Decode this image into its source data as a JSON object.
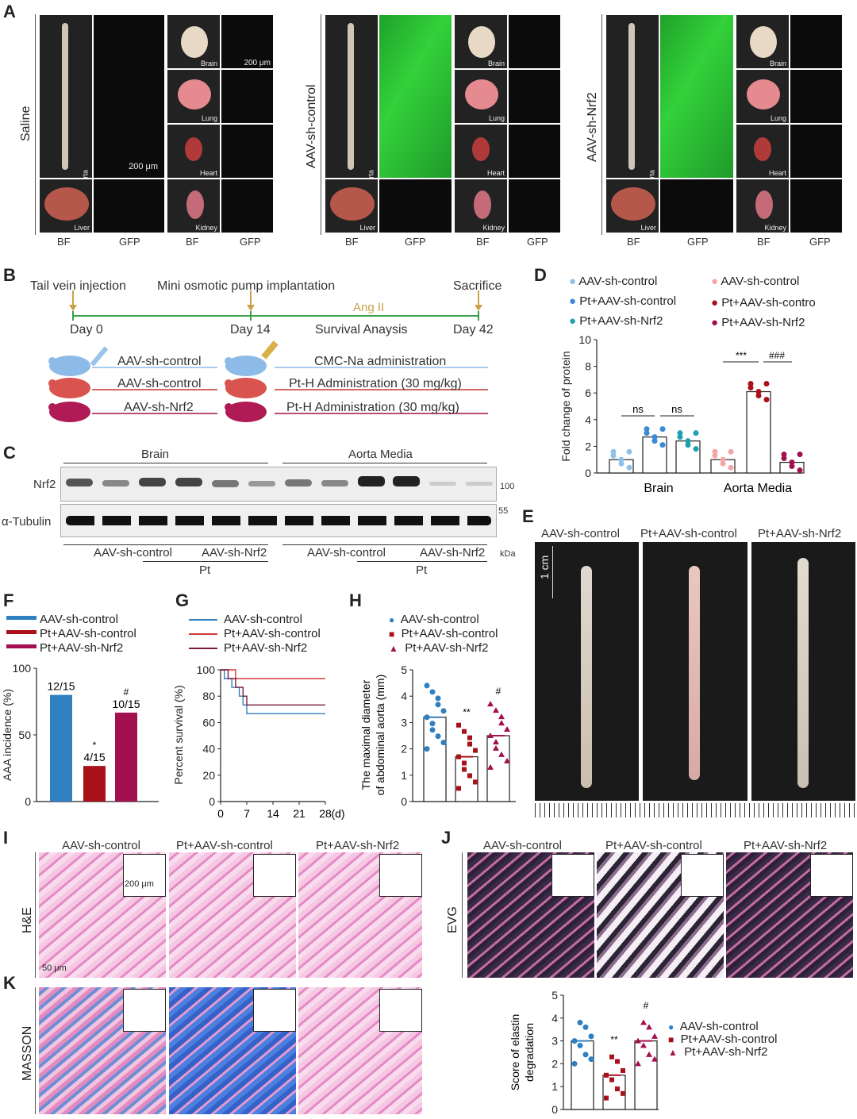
{
  "panels": {
    "A": "A",
    "B": "B",
    "C": "C",
    "D": "D",
    "E": "E",
    "F": "F",
    "G": "G",
    "H": "H",
    "I": "I",
    "J": "J",
    "K": "K"
  },
  "panel_a": {
    "groups": [
      "Saline",
      "AAV-sh-control",
      "AAV-sh-Nrf2"
    ],
    "organs": [
      "Aorta",
      "Brain",
      "Lung",
      "Heart",
      "Liver",
      "Kidney"
    ],
    "bottom": [
      "BF",
      "GFP",
      "BF",
      "GFP"
    ],
    "scale": "200 μm"
  },
  "panel_b": {
    "top": [
      "Tail vein injection",
      "Mini osmotic pump implantation",
      "Sacrifice"
    ],
    "days": [
      "Day 0",
      "Day 14",
      "Day 42"
    ],
    "angii": "Ang II",
    "survival": "Survival Anaysis",
    "rows": [
      {
        "left": "AAV-sh-control",
        "right": "CMC-Na administration"
      },
      {
        "left": "AAV-sh-control",
        "right": "Pt-H Administration (30 mg/kg)"
      },
      {
        "left": "AAV-sh-Nrf2",
        "right": "Pt-H Administration (30 mg/kg)"
      }
    ]
  },
  "panel_c": {
    "brain": "Brain",
    "aorta": "Aorta Media",
    "nrf2": "Nrf2",
    "tubulin": "α-Tubulin",
    "kda100": "100",
    "kda55": "55",
    "kda": "kDa",
    "groups": [
      "AAV-sh-control",
      "AAV-sh-Nrf2",
      "AAV-sh-control",
      "AAV-sh-Nrf2"
    ],
    "pt": "Pt"
  },
  "panel_e": {
    "groups": [
      "AAV-sh-control",
      "Pt+AAV-sh-control",
      "Pt+AAV-sh-Nrf2"
    ],
    "scale": "1 cm"
  },
  "panel_i": {
    "groups": [
      "AAV-sh-control",
      "Pt+AAV-sh-control",
      "Pt+AAV-sh-Nrf2"
    ],
    "stain": "H&E",
    "scale1": "200 μm",
    "scale2": "50 μm"
  },
  "panel_j": {
    "groups": [
      "AAV-sh-control",
      "Pt+AAV-sh-control",
      "Pt+AAV-sh-Nrf2"
    ],
    "stain": "EVG"
  },
  "panel_k": {
    "stain": "MASSON"
  },
  "colors": {
    "blue": "#2f7fc1",
    "red": "#a8101a",
    "magenta": "#a3104f",
    "green": "#3aa04a"
  },
  "chart_data": [
    {
      "id": "D",
      "type": "bar",
      "ylabel": "Fold change of protein",
      "ylim": [
        0,
        10
      ],
      "yticks": [
        0,
        2,
        4,
        6,
        8,
        10
      ],
      "groups": [
        "Brain",
        "Aorta Media"
      ],
      "legend": [
        "AAV-sh-control",
        "Pt+AAV-sh-control",
        "Pt+AAV-sh-Nrf2",
        "AAV-sh-control",
        "Pt+AAV-sh-contro",
        "Pt+AAV-sh-Nrf2"
      ],
      "series": [
        {
          "name": "AAV-sh-control",
          "group": "Brain",
          "value": 1.0,
          "color": "#8ec1ea"
        },
        {
          "name": "Pt+AAV-sh-control",
          "group": "Brain",
          "value": 2.7,
          "color": "#3b8ad8"
        },
        {
          "name": "Pt+AAV-sh-Nrf2",
          "group": "Brain",
          "value": 2.4,
          "color": "#1f9fb0"
        },
        {
          "name": "AAV-sh-control",
          "group": "Aorta Media",
          "value": 1.0,
          "color": "#f2a7a5"
        },
        {
          "name": "Pt+AAV-sh-contro",
          "group": "Aorta Media",
          "value": 6.1,
          "color": "#a8101a"
        },
        {
          "name": "Pt+AAV-sh-Nrf2",
          "group": "Aorta Media",
          "value": 0.8,
          "color": "#a3104f"
        }
      ],
      "annotations": [
        "ns",
        "ns",
        "***",
        "###"
      ]
    },
    {
      "id": "F",
      "type": "bar",
      "ylabel": "AAA incidence (%)",
      "ylim": [
        0,
        100
      ],
      "yticks": [
        0,
        50,
        100
      ],
      "categories": [
        "AAV-sh-control",
        "Pt+AAV-sh-control",
        "Pt+AAV-sh-Nrf2"
      ],
      "values": [
        80,
        26.7,
        66.7
      ],
      "labels": [
        "12/15",
        "4/15",
        "10/15"
      ],
      "marks": [
        "",
        "*",
        "#"
      ]
    },
    {
      "id": "G",
      "type": "line",
      "ylabel": "Percent survival (%)",
      "xlabel": "(d)",
      "xticks": [
        0,
        7,
        14,
        21,
        28
      ],
      "yticks": [
        0,
        20,
        40,
        60,
        80,
        100
      ],
      "series": [
        {
          "name": "AAV-sh-control",
          "final": 66.7
        },
        {
          "name": "Pt+AAV-sh-control",
          "final": 93.3
        },
        {
          "name": "Pt+AAV-sh-Nrf2",
          "final": 73.3
        }
      ]
    },
    {
      "id": "H",
      "type": "scatter",
      "ylabel": "The maximal diameter of abdominal aorta (mm)",
      "ylim": [
        0,
        5
      ],
      "yticks": [
        0,
        1,
        2,
        3,
        4,
        5
      ],
      "categories": [
        "AAV-sh-control",
        "Pt+AAV-sh-control",
        "Pt+AAV-sh-Nrf2"
      ],
      "means": [
        3.2,
        1.7,
        2.5
      ],
      "marks": [
        "",
        "**",
        "#"
      ]
    },
    {
      "id": "J",
      "type": "scatter",
      "ylabel": "Score of elastin degradation",
      "ylim": [
        0,
        5
      ],
      "yticks": [
        0,
        1,
        2,
        3,
        4,
        5
      ],
      "categories": [
        "AAV-sh-control",
        "Pt+AAV-sh-control",
        "Pt+AAV-sh-Nrf2"
      ],
      "means": [
        3.0,
        1.5,
        3.0
      ],
      "marks": [
        "",
        "**",
        "#"
      ]
    }
  ]
}
